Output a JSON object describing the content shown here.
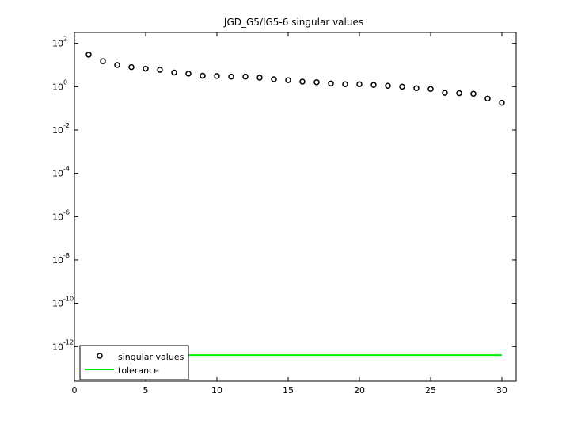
{
  "chart_data": {
    "type": "scatter",
    "title": "JGD_G5/IG5-6 singular values",
    "xlabel": "",
    "ylabel": "",
    "xlim": [
      0,
      31
    ],
    "ylim_log10": [
      -13.6,
      2.5
    ],
    "y_scale": "log",
    "grid": false,
    "x_ticks": [
      {
        "value": 0,
        "label": "0"
      },
      {
        "value": 5,
        "label": "5"
      },
      {
        "value": 10,
        "label": "10"
      },
      {
        "value": 15,
        "label": "15"
      },
      {
        "value": 20,
        "label": "20"
      },
      {
        "value": 25,
        "label": "25"
      },
      {
        "value": 30,
        "label": "30"
      }
    ],
    "y_ticks": [
      {
        "exp": 2,
        "base": "10",
        "power": "2"
      },
      {
        "exp": 0,
        "base": "10",
        "power": "0"
      },
      {
        "exp": -2,
        "base": "10",
        "power": "-2"
      },
      {
        "exp": -4,
        "base": "10",
        "power": "-4"
      },
      {
        "exp": -6,
        "base": "10",
        "power": "-6"
      },
      {
        "exp": -8,
        "base": "10",
        "power": "-8"
      },
      {
        "exp": -10,
        "base": "10",
        "power": "-10"
      },
      {
        "exp": -12,
        "base": "10",
        "power": "-12"
      }
    ],
    "series": [
      {
        "name": "singular values",
        "marker": "circle",
        "color": "#000000",
        "x": [
          1,
          2,
          3,
          4,
          5,
          6,
          7,
          8,
          9,
          10,
          11,
          12,
          13,
          14,
          15,
          16,
          17,
          18,
          19,
          20,
          21,
          22,
          23,
          24,
          25,
          26,
          27,
          28,
          29,
          30
        ],
        "y": [
          30,
          15,
          10,
          8,
          6.8,
          6.0,
          4.5,
          4.0,
          3.2,
          3.1,
          2.9,
          2.9,
          2.6,
          2.2,
          2.0,
          1.7,
          1.6,
          1.4,
          1.3,
          1.3,
          1.2,
          1.1,
          1.0,
          0.85,
          0.78,
          0.52,
          0.5,
          0.47,
          0.28,
          0.18
        ]
      },
      {
        "name": "tolerance",
        "type": "line",
        "color": "#00ee00",
        "x": [
          1,
          30
        ],
        "y": [
          4e-13,
          4e-13
        ]
      }
    ],
    "legend": {
      "placement": "bottom-left",
      "entries": [
        "singular values",
        "tolerance"
      ]
    }
  }
}
